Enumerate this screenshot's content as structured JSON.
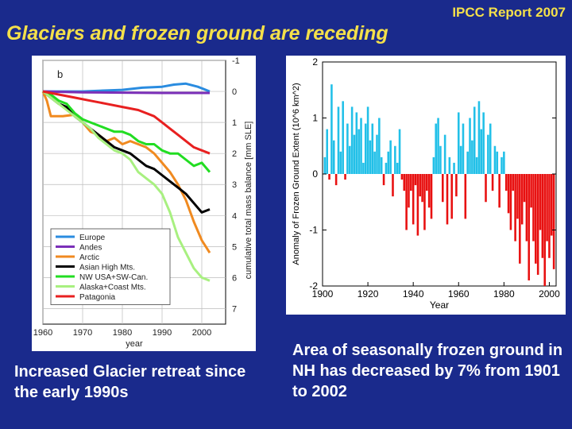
{
  "header": {
    "report_label": "IPCC Report 2007",
    "title": "Glaciers and frozen ground are receding"
  },
  "captions": {
    "left": "Increased Glacier retreat since the early 1990s",
    "right": "Area of seasonally frozen ground in NH has decreased by 7% from 1901 to 2002"
  },
  "colors": {
    "background": "#1a2a8c",
    "accent_text": "#f4e04a",
    "positive_bars": "#22c0e8",
    "negative_bars": "#e81010"
  },
  "chart_data": [
    {
      "type": "line",
      "panel_label": "b",
      "title": "",
      "xlabel": "year",
      "ylabel": "cumulative total mass balance [mm SLE]",
      "xlim": [
        1960,
        2006
      ],
      "ylim": [
        -1,
        7.5
      ],
      "y_inverted": true,
      "y_axis_side": "right",
      "x_ticks": [
        "1960",
        "1970",
        "1980",
        "1990",
        "2000"
      ],
      "y_ticks": [
        "-1",
        "0",
        "1",
        "2",
        "3",
        "4",
        "5",
        "6",
        "7"
      ],
      "legend_position": "bottom-left",
      "series": [
        {
          "name": "Europe",
          "color": "#2a8ce0",
          "x": [
            1960,
            1970,
            1980,
            1985,
            1990,
            1993,
            1996,
            1999,
            2002
          ],
          "y": [
            0,
            0,
            -0.05,
            -0.12,
            -0.15,
            -0.22,
            -0.25,
            -0.15,
            0
          ]
        },
        {
          "name": "Andes",
          "color": "#7b2fb8",
          "x": [
            1960,
            1970,
            1980,
            1990,
            2002
          ],
          "y": [
            0,
            0.03,
            0.04,
            0.05,
            0.05
          ]
        },
        {
          "name": "Arctic",
          "color": "#f08a20",
          "x": [
            1960,
            1961,
            1962,
            1965,
            1968,
            1970,
            1972,
            1974,
            1976,
            1978,
            1980,
            1982,
            1984,
            1986,
            1988,
            1990,
            1992,
            1994,
            1996,
            1998,
            2000,
            2002
          ],
          "y": [
            0,
            0.3,
            0.8,
            0.8,
            0.75,
            1.0,
            1.3,
            1.4,
            1.6,
            1.5,
            1.7,
            1.6,
            1.7,
            1.8,
            2.0,
            2.3,
            2.6,
            3.0,
            3.5,
            4.2,
            4.8,
            5.2
          ]
        },
        {
          "name": "Asian High Mts.",
          "color": "#000000",
          "x": [
            1960,
            1962,
            1964,
            1966,
            1968,
            1970,
            1972,
            1974,
            1976,
            1978,
            1980,
            1982,
            1984,
            1986,
            1988,
            1990,
            1992,
            1994,
            1996,
            1998,
            2000,
            2002
          ],
          "y": [
            0,
            0.2,
            0.4,
            0.5,
            0.8,
            1.0,
            1.2,
            1.4,
            1.6,
            1.8,
            1.9,
            2.0,
            2.2,
            2.4,
            2.5,
            2.7,
            2.9,
            3.1,
            3.3,
            3.6,
            3.9,
            3.8
          ]
        },
        {
          "name": "NW USA+SW-Can.",
          "color": "#22dd22",
          "x": [
            1960,
            1962,
            1964,
            1966,
            1968,
            1970,
            1972,
            1974,
            1976,
            1978,
            1980,
            1982,
            1984,
            1986,
            1988,
            1990,
            1992,
            1994,
            1996,
            1998,
            2000,
            2002
          ],
          "y": [
            0,
            0.1,
            0.3,
            0.4,
            0.7,
            0.9,
            1.0,
            1.1,
            1.2,
            1.3,
            1.3,
            1.4,
            1.6,
            1.7,
            1.7,
            1.9,
            2.0,
            2.0,
            2.2,
            2.4,
            2.3,
            2.6
          ]
        },
        {
          "name": "Alaska+Coast Mts.",
          "color": "#a8f080",
          "x": [
            1960,
            1962,
            1964,
            1966,
            1968,
            1970,
            1972,
            1974,
            1976,
            1978,
            1980,
            1982,
            1984,
            1986,
            1988,
            1990,
            1992,
            1994,
            1996,
            1998,
            2000,
            2002
          ],
          "y": [
            0,
            0.2,
            0.4,
            0.6,
            0.8,
            1.0,
            1.2,
            1.5,
            1.7,
            1.9,
            2.0,
            2.2,
            2.6,
            2.8,
            3.0,
            3.3,
            3.9,
            4.7,
            5.2,
            5.7,
            6.0,
            6.1
          ]
        },
        {
          "name": "Patagonia",
          "color": "#e82020",
          "x": [
            1960,
            1964,
            1968,
            1972,
            1976,
            1980,
            1984,
            1988,
            1990,
            1992,
            1994,
            1996,
            1998,
            2000,
            2002
          ],
          "y": [
            0,
            0.1,
            0.2,
            0.3,
            0.4,
            0.5,
            0.6,
            0.8,
            1.0,
            1.2,
            1.4,
            1.6,
            1.8,
            1.9,
            2.0
          ]
        }
      ]
    },
    {
      "type": "bar",
      "title": "",
      "xlabel": "Year",
      "ylabel": "Anomaly of Frozen Ground Extent (10^6 km^2)",
      "xlim": [
        1900,
        2003
      ],
      "ylim": [
        -2,
        2
      ],
      "x_ticks": [
        "1900",
        "1920",
        "1940",
        "1960",
        "1980",
        "2000"
      ],
      "y_ticks": [
        "-2",
        "-1",
        "0",
        "1",
        "2"
      ],
      "x": [
        1901,
        1902,
        1903,
        1904,
        1905,
        1906,
        1907,
        1908,
        1909,
        1910,
        1911,
        1912,
        1913,
        1914,
        1915,
        1916,
        1917,
        1918,
        1919,
        1920,
        1921,
        1922,
        1923,
        1924,
        1925,
        1926,
        1927,
        1928,
        1929,
        1930,
        1931,
        1932,
        1933,
        1934,
        1935,
        1936,
        1937,
        1938,
        1939,
        1940,
        1941,
        1942,
        1943,
        1944,
        1945,
        1946,
        1947,
        1948,
        1949,
        1950,
        1951,
        1952,
        1953,
        1954,
        1955,
        1956,
        1957,
        1958,
        1959,
        1960,
        1961,
        1962,
        1963,
        1964,
        1965,
        1966,
        1967,
        1968,
        1969,
        1970,
        1971,
        1972,
        1973,
        1974,
        1975,
        1976,
        1977,
        1978,
        1979,
        1980,
        1981,
        1982,
        1983,
        1984,
        1985,
        1986,
        1987,
        1988,
        1989,
        1990,
        1991,
        1992,
        1993,
        1994,
        1995,
        1996,
        1997,
        1998,
        1999,
        2000,
        2001,
        2002
      ],
      "values": [
        0.3,
        0.8,
        -0.1,
        1.6,
        0.6,
        -0.2,
        1.2,
        0.4,
        1.3,
        -0.1,
        0.9,
        0.5,
        1.2,
        0.7,
        1.1,
        0.8,
        1.0,
        0.2,
        0.9,
        1.2,
        0.6,
        0.9,
        0.4,
        0.7,
        1.0,
        0.3,
        -0.2,
        0.2,
        0.4,
        0.6,
        -0.4,
        0.5,
        0.2,
        0.8,
        -0.1,
        -0.3,
        -1.0,
        -0.6,
        -0.3,
        -0.9,
        -0.2,
        -1.1,
        -0.4,
        -0.5,
        -1.0,
        -0.3,
        -0.6,
        -0.8,
        0.3,
        0.9,
        1.0,
        0.5,
        -0.5,
        0.7,
        -0.9,
        0.3,
        -0.8,
        0.2,
        -0.4,
        1.1,
        0.5,
        0.9,
        -0.8,
        0.4,
        1.0,
        0.6,
        1.2,
        0.3,
        1.3,
        0.8,
        1.1,
        -0.5,
        0.7,
        0.9,
        -0.3,
        0.5,
        0.4,
        -0.6,
        0.3,
        0.4,
        -0.3,
        -0.7,
        -1.0,
        -0.3,
        -1.2,
        -0.8,
        -1.6,
        -0.9,
        -0.5,
        -1.2,
        -1.9,
        -0.6,
        -1.2,
        -1.6,
        -1.8,
        -1.0,
        -1.5,
        -2.0,
        -1.2,
        -1.5,
        -1.1,
        -1.7
      ]
    }
  ]
}
